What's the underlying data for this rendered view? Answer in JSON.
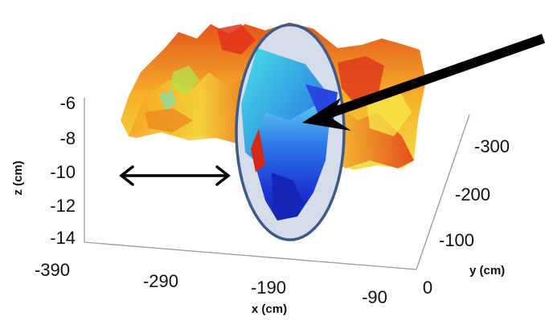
{
  "chart_data": {
    "type": "surface",
    "title": "",
    "xlabel": "x (cm)",
    "ylabel": "y (cm)",
    "zlabel": "z (cm)",
    "x_ticks": [
      "-390",
      "-290",
      "-190",
      "-90"
    ],
    "y_ticks": [
      "0",
      "-100",
      "-200",
      "-300"
    ],
    "z_ticks": [
      "-6",
      "-8",
      "-10",
      "-12",
      "-14"
    ],
    "xlim": [
      -390,
      -90
    ],
    "ylim": [
      -300,
      0
    ],
    "zlim": [
      -14,
      -6
    ],
    "grid": false,
    "colormap": "jet",
    "colors": {
      "ellipse_fill": "#d6dcea",
      "ellipse_stroke": "#3d5a8a",
      "arrow": "#000000",
      "surface_high": "#e0361a",
      "surface_mid": "#f2c02e",
      "surface_low": "#1b2fd0"
    },
    "annotations": [
      {
        "kind": "ellipse",
        "meaning": "highlighted depression region"
      },
      {
        "kind": "arrow",
        "meaning": "pointer to depression"
      },
      {
        "kind": "double-arrow",
        "meaning": "horizontal extent"
      }
    ]
  }
}
